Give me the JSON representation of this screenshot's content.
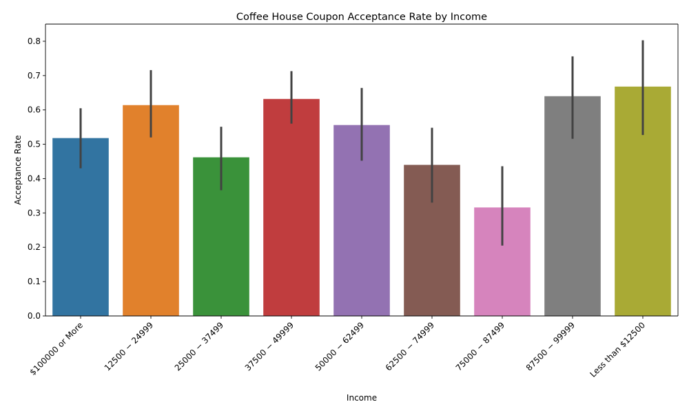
{
  "chart_data": {
    "type": "bar",
    "title": "Coffee House Coupon Acceptance Rate by Income",
    "xlabel": "Income",
    "ylabel": "Acceptance Rate",
    "categories": [
      "$100000 or More",
      "$12500 - $24999",
      "$25000 - $37499",
      "$37500 - $49999",
      "$50000 - $62499",
      "$62500 - $74999",
      "$75000 - $87499",
      "$87500 - $99999",
      "Less than $12500"
    ],
    "tick_labels": [
      "$100000 or More",
      "12500 − 24999",
      "25000 − 37499",
      "37500 − 49999",
      "50000 − 62499",
      "62500 − 74999",
      "75000 − 87499",
      "87500 − 99999",
      "Less than $12500"
    ],
    "values": [
      0.518,
      0.614,
      0.462,
      0.632,
      0.556,
      0.44,
      0.316,
      0.64,
      0.668
    ],
    "ci_low": [
      0.43,
      0.52,
      0.366,
      0.56,
      0.452,
      0.33,
      0.205,
      0.516,
      0.527
    ],
    "ci_high": [
      0.605,
      0.716,
      0.551,
      0.713,
      0.664,
      0.548,
      0.436,
      0.756,
      0.803
    ],
    "colors": [
      "#3274a1",
      "#e1812c",
      "#3a923a",
      "#c03d3e",
      "#9372b2",
      "#845b53",
      "#d684bd",
      "#7f7f7f",
      "#a9aa35"
    ],
    "ylim": [
      0,
      0.85
    ],
    "yticks": [
      0.0,
      0.1,
      0.2,
      0.3,
      0.4,
      0.5,
      0.6,
      0.7,
      0.8
    ],
    "grid": false,
    "legend": "none"
  }
}
